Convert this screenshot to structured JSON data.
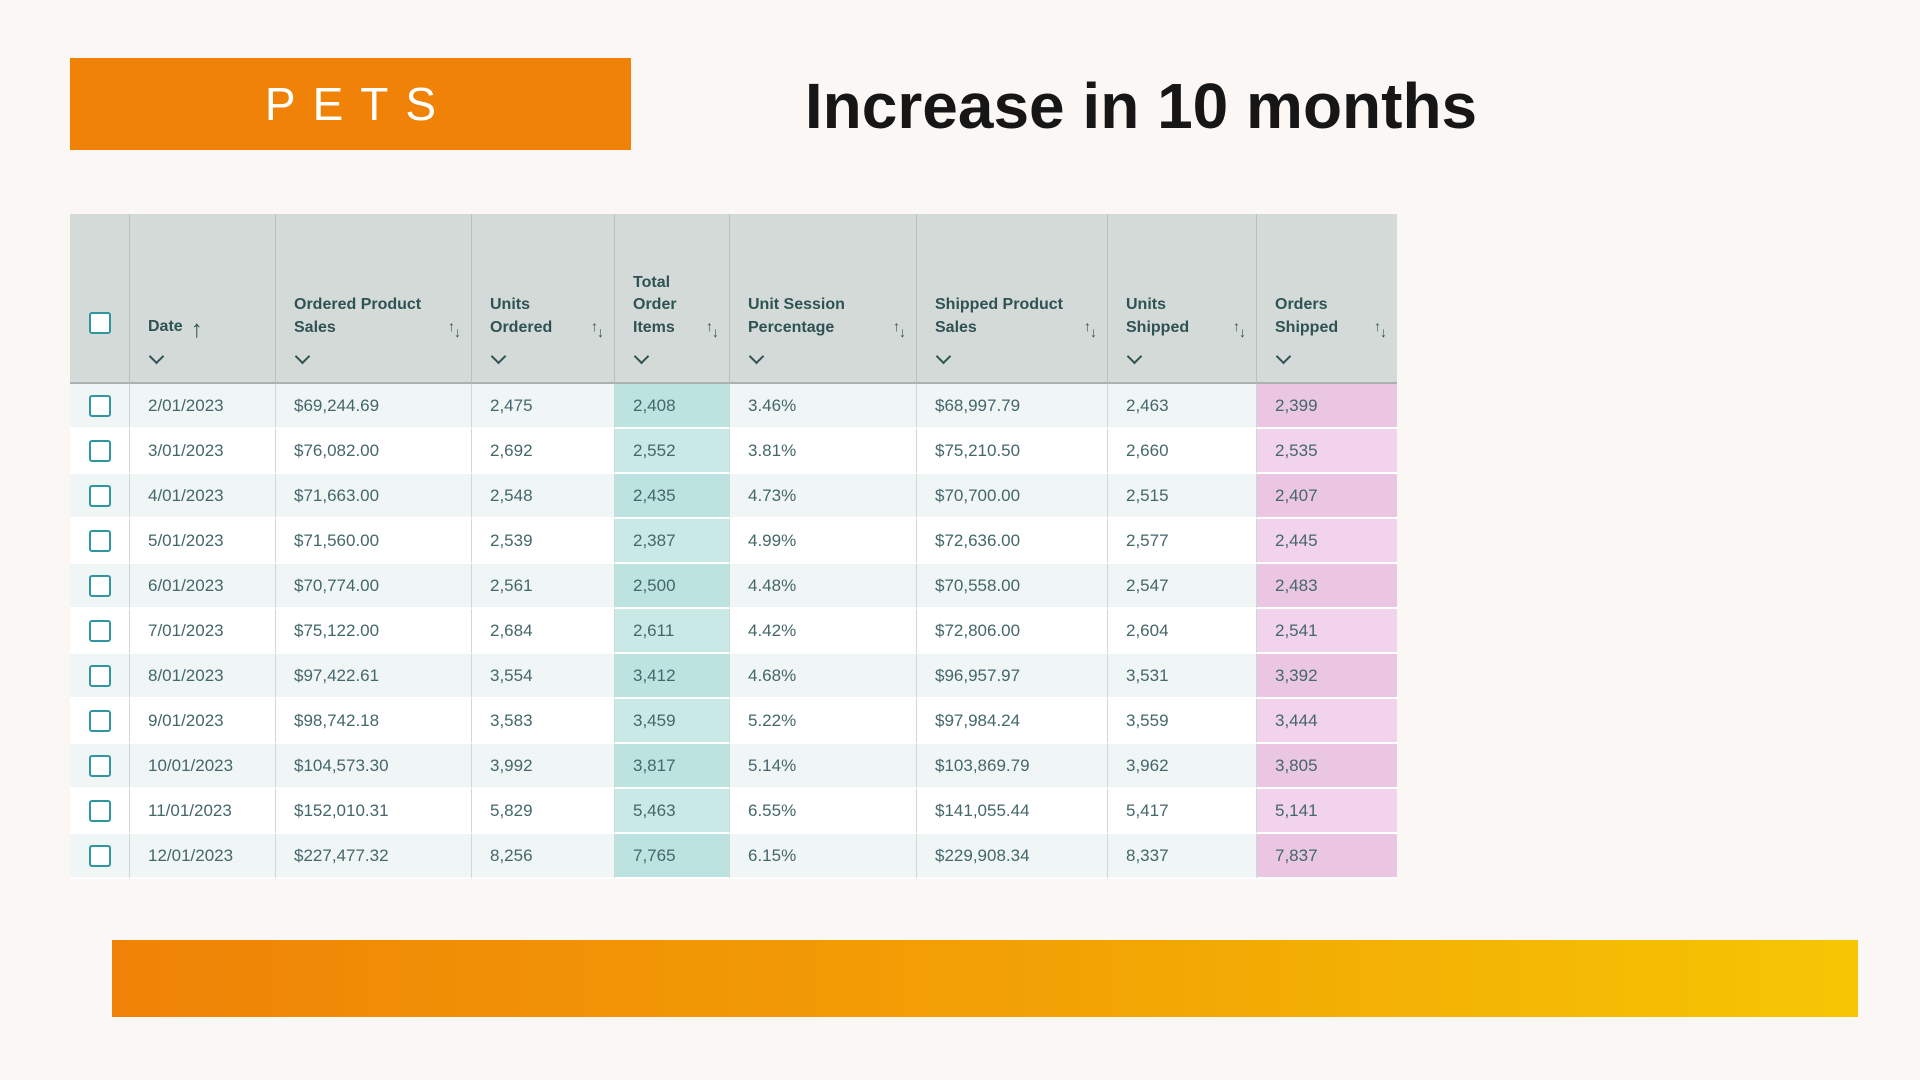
{
  "banner": {
    "label": "PETS"
  },
  "title": "Increase in 10 months",
  "table": {
    "select_all": true,
    "columns": [
      {
        "key": "date",
        "label": "Date",
        "sort_indicator": "asc",
        "filter_chevron": true,
        "highlight": null
      },
      {
        "key": "ordered_product_sales",
        "label": "Ordered Product Sales",
        "sort_indicator": "both",
        "filter_chevron": true,
        "highlight": null
      },
      {
        "key": "units_ordered",
        "label": "Units Ordered",
        "sort_indicator": "both",
        "filter_chevron": true,
        "highlight": null
      },
      {
        "key": "total_order_items",
        "label": "Total Order Items",
        "sort_indicator": "both",
        "filter_chevron": true,
        "highlight": "teal"
      },
      {
        "key": "unit_session_percentage",
        "label": "Unit Session Percentage",
        "sort_indicator": "both",
        "filter_chevron": true,
        "highlight": null
      },
      {
        "key": "shipped_product_sales",
        "label": "Shipped Product Sales",
        "sort_indicator": "both",
        "filter_chevron": true,
        "highlight": null
      },
      {
        "key": "units_shipped",
        "label": "Units Shipped",
        "sort_indicator": "both",
        "filter_chevron": true,
        "highlight": null
      },
      {
        "key": "orders_shipped",
        "label": "Orders Shipped",
        "sort_indicator": "both",
        "filter_chevron": true,
        "highlight": "pink"
      }
    ],
    "rows": [
      {
        "date": "2/01/2023",
        "ordered_product_sales": "$69,244.69",
        "units_ordered": "2,475",
        "total_order_items": "2,408",
        "unit_session_percentage": "3.46%",
        "shipped_product_sales": "$68,997.79",
        "units_shipped": "2,463",
        "orders_shipped": "2,399"
      },
      {
        "date": "3/01/2023",
        "ordered_product_sales": "$76,082.00",
        "units_ordered": "2,692",
        "total_order_items": "2,552",
        "unit_session_percentage": "3.81%",
        "shipped_product_sales": "$75,210.50",
        "units_shipped": "2,660",
        "orders_shipped": "2,535"
      },
      {
        "date": "4/01/2023",
        "ordered_product_sales": "$71,663.00",
        "units_ordered": "2,548",
        "total_order_items": "2,435",
        "unit_session_percentage": "4.73%",
        "shipped_product_sales": "$70,700.00",
        "units_shipped": "2,515",
        "orders_shipped": "2,407"
      },
      {
        "date": "5/01/2023",
        "ordered_product_sales": "$71,560.00",
        "units_ordered": "2,539",
        "total_order_items": "2,387",
        "unit_session_percentage": "4.99%",
        "shipped_product_sales": "$72,636.00",
        "units_shipped": "2,577",
        "orders_shipped": "2,445"
      },
      {
        "date": "6/01/2023",
        "ordered_product_sales": "$70,774.00",
        "units_ordered": "2,561",
        "total_order_items": "2,500",
        "unit_session_percentage": "4.48%",
        "shipped_product_sales": "$70,558.00",
        "units_shipped": "2,547",
        "orders_shipped": "2,483"
      },
      {
        "date": "7/01/2023",
        "ordered_product_sales": "$75,122.00",
        "units_ordered": "2,684",
        "total_order_items": "2,611",
        "unit_session_percentage": "4.42%",
        "shipped_product_sales": "$72,806.00",
        "units_shipped": "2,604",
        "orders_shipped": "2,541"
      },
      {
        "date": "8/01/2023",
        "ordered_product_sales": "$97,422.61",
        "units_ordered": "3,554",
        "total_order_items": "3,412",
        "unit_session_percentage": "4.68%",
        "shipped_product_sales": "$96,957.97",
        "units_shipped": "3,531",
        "orders_shipped": "3,392"
      },
      {
        "date": "9/01/2023",
        "ordered_product_sales": "$98,742.18",
        "units_ordered": "3,583",
        "total_order_items": "3,459",
        "unit_session_percentage": "5.22%",
        "shipped_product_sales": "$97,984.24",
        "units_shipped": "3,559",
        "orders_shipped": "3,444"
      },
      {
        "date": "10/01/2023",
        "ordered_product_sales": "$104,573.30",
        "units_ordered": "3,992",
        "total_order_items": "3,817",
        "unit_session_percentage": "5.14%",
        "shipped_product_sales": "$103,869.79",
        "units_shipped": "3,962",
        "orders_shipped": "3,805"
      },
      {
        "date": "11/01/2023",
        "ordered_product_sales": "$152,010.31",
        "units_ordered": "5,829",
        "total_order_items": "5,463",
        "unit_session_percentage": "6.55%",
        "shipped_product_sales": "$141,055.44",
        "units_shipped": "5,417",
        "orders_shipped": "5,141"
      },
      {
        "date": "12/01/2023",
        "ordered_product_sales": "$227,477.32",
        "units_ordered": "8,256",
        "total_order_items": "7,765",
        "unit_session_percentage": "6.15%",
        "shipped_product_sales": "$229,908.34",
        "units_shipped": "8,337",
        "orders_shipped": "7,837"
      }
    ]
  },
  "colors": {
    "banner_orange": "#F08307",
    "gradient_start": "#F08307",
    "gradient_mid": "#F2A304",
    "gradient_end": "#F6C604",
    "header_bg": "#D3DAD8",
    "header_text": "#2F5254",
    "body_text": "#44676A",
    "row_stripe": "#F0F5F5",
    "teal_highlight": "#BCE3E0",
    "pink_highlight": "#EBC6E3",
    "checkbox_border": "#2E96A0",
    "page_bg": "#FAF7F4"
  }
}
